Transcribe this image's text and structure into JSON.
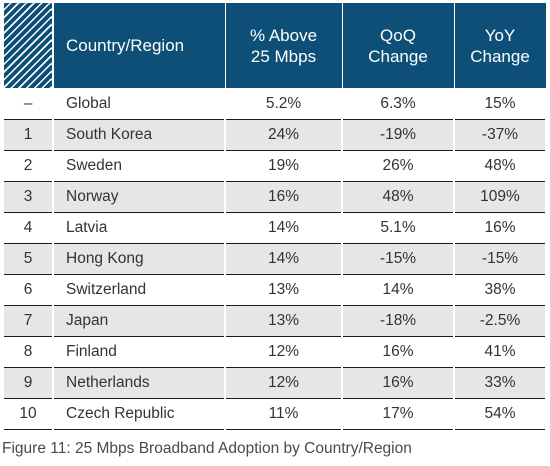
{
  "chart_data": {
    "type": "table",
    "columns": [
      "Country/Region",
      "% Above\n25 Mbps",
      "QoQ\nChange",
      "YoY\nChange"
    ],
    "rows": [
      {
        "rank": "–",
        "country": "Global",
        "above_25": "5.2%",
        "qoq": "6.3%",
        "yoy": "15%"
      },
      {
        "rank": "1",
        "country": "South Korea",
        "above_25": "24%",
        "qoq": "-19%",
        "yoy": "-37%"
      },
      {
        "rank": "2",
        "country": "Sweden",
        "above_25": "19%",
        "qoq": "26%",
        "yoy": "48%"
      },
      {
        "rank": "3",
        "country": "Norway",
        "above_25": "16%",
        "qoq": "48%",
        "yoy": "109%"
      },
      {
        "rank": "4",
        "country": "Latvia",
        "above_25": "14%",
        "qoq": "5.1%",
        "yoy": "16%"
      },
      {
        "rank": "5",
        "country": "Hong Kong",
        "above_25": "14%",
        "qoq": "-15%",
        "yoy": "-15%"
      },
      {
        "rank": "6",
        "country": "Switzerland",
        "above_25": "13%",
        "qoq": "14%",
        "yoy": "38%"
      },
      {
        "rank": "7",
        "country": "Japan",
        "above_25": "13%",
        "qoq": "-18%",
        "yoy": "-2.5%"
      },
      {
        "rank": "8",
        "country": "Finland",
        "above_25": "12%",
        "qoq": "16%",
        "yoy": "41%"
      },
      {
        "rank": "9",
        "country": "Netherlands",
        "above_25": "12%",
        "qoq": "16%",
        "yoy": "33%"
      },
      {
        "rank": "10",
        "country": "Czech Republic",
        "above_25": "11%",
        "qoq": "17%",
        "yoy": "54%"
      }
    ],
    "caption": "Figure 11: 25 Mbps Broadband Adoption by Country/Region"
  },
  "header": {
    "country": "Country/Region",
    "above_line1": "% Above",
    "above_line2": "25 Mbps",
    "qoq_line1": "QoQ",
    "qoq_line2": "Change",
    "yoy_line1": "YoY",
    "yoy_line2": "Change"
  },
  "colors": {
    "header_bg": "#0e4f78",
    "stripe_bg": "#e6e6e6"
  }
}
